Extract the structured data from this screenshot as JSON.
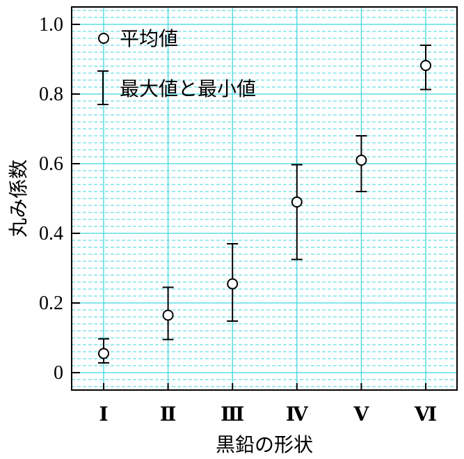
{
  "chart_data": {
    "type": "scatter",
    "xlabel": "黒鉛の形状",
    "ylabel": "丸み係数",
    "categories": [
      "Ⅰ",
      "Ⅱ",
      "Ⅲ",
      "Ⅳ",
      "Ⅴ",
      "Ⅵ"
    ],
    "ylim": [
      -0.05,
      1.05
    ],
    "yticks": [
      0,
      0.2,
      0.4,
      0.6,
      0.8,
      1.0
    ],
    "ytick_labels": [
      "0",
      "0.2",
      "0.4",
      "0.6",
      "0.8",
      "1.0"
    ],
    "grid": true,
    "legend_position": "top-left",
    "legend": {
      "mean_label": "平均値",
      "range_label": "最大値と最小値"
    },
    "series": [
      {
        "name": "平均値",
        "values": [
          0.055,
          0.165,
          0.255,
          0.49,
          0.61,
          0.882
        ]
      },
      {
        "name": "最大値",
        "values": [
          0.097,
          0.245,
          0.37,
          0.597,
          0.68,
          0.94
        ]
      },
      {
        "name": "最小値",
        "values": [
          0.028,
          0.095,
          0.148,
          0.325,
          0.52,
          0.813
        ]
      }
    ],
    "colors": {
      "grid": "#3fd6dd",
      "axis": "#000000",
      "marker": "#000000"
    }
  }
}
